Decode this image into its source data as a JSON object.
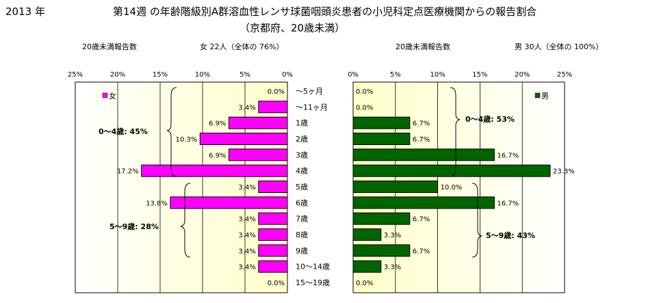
{
  "header": {
    "year": "2013 年",
    "title_line1": "第14週 の年齢階級別A群溶血性レンサ球菌咽頭炎患者の小児科定点医療機関からの報告割合",
    "title_line2": "（京都府、20歳未満）"
  },
  "left": {
    "reports_label": "20歳未満報告数",
    "summary": "女 22人（全体の 76%）",
    "legend": "女",
    "group1": "0～4歳: 45%",
    "group2": "5～9歳: 28%"
  },
  "right": {
    "reports_label": "20歳未満報告数",
    "summary": "男 30人（全体の 100%）",
    "legend": "男",
    "group1": "0～4歳: 53%",
    "group2": "5～9歳: 43%"
  },
  "colors": {
    "female": "#ff00ff",
    "male": "#006400",
    "plot_bg_center": "#ffffcc",
    "plot_bg_edge": "#ffffff"
  },
  "chart_data": [
    {
      "type": "bar",
      "orientation": "horizontal-reversed",
      "categories": [
        "～5ヶ月",
        "～11ヶ月",
        "1歳",
        "2歳",
        "3歳",
        "4歳",
        "5歳",
        "6歳",
        "7歳",
        "8歳",
        "9歳",
        "10～14歳",
        "15～19歳"
      ],
      "series": [
        {
          "name": "女",
          "values": [
            0.0,
            3.4,
            6.9,
            10.3,
            6.9,
            17.2,
            3.4,
            13.8,
            3.4,
            3.4,
            3.4,
            3.4,
            0.0
          ]
        }
      ],
      "data_labels": [
        "0.0%",
        "3.4%",
        "6.9%",
        "10.3%",
        "6.9%",
        "17.2%",
        "3.4%",
        "13.8%",
        "3.4%",
        "3.4%",
        "3.4%",
        "3.4%",
        "0.0%"
      ],
      "xlim": [
        0,
        25
      ],
      "ticks": [
        "25%",
        "20%",
        "15%",
        "10%",
        "5%",
        "0%"
      ],
      "legend": "top-left"
    },
    {
      "type": "bar",
      "orientation": "horizontal",
      "categories": [
        "～5ヶ月",
        "～11ヶ月",
        "1歳",
        "2歳",
        "3歳",
        "4歳",
        "5歳",
        "6歳",
        "7歳",
        "8歳",
        "9歳",
        "10～14歳",
        "15～19歳"
      ],
      "series": [
        {
          "name": "男",
          "values": [
            0.0,
            0.0,
            6.7,
            6.7,
            16.7,
            23.3,
            10.0,
            16.7,
            6.7,
            3.3,
            6.7,
            3.3,
            0.0
          ]
        }
      ],
      "data_labels": [
        "0.0%",
        "0.0%",
        "6.7%",
        "6.7%",
        "16.7%",
        "23.3%",
        "10.0%",
        "16.7%",
        "6.7%",
        "3.3%",
        "6.7%",
        "3.3%",
        "0.0%"
      ],
      "xlim": [
        0,
        25
      ],
      "ticks": [
        "0%",
        "5%",
        "10%",
        "15%",
        "20%",
        "25%"
      ],
      "legend": "top-right"
    }
  ]
}
